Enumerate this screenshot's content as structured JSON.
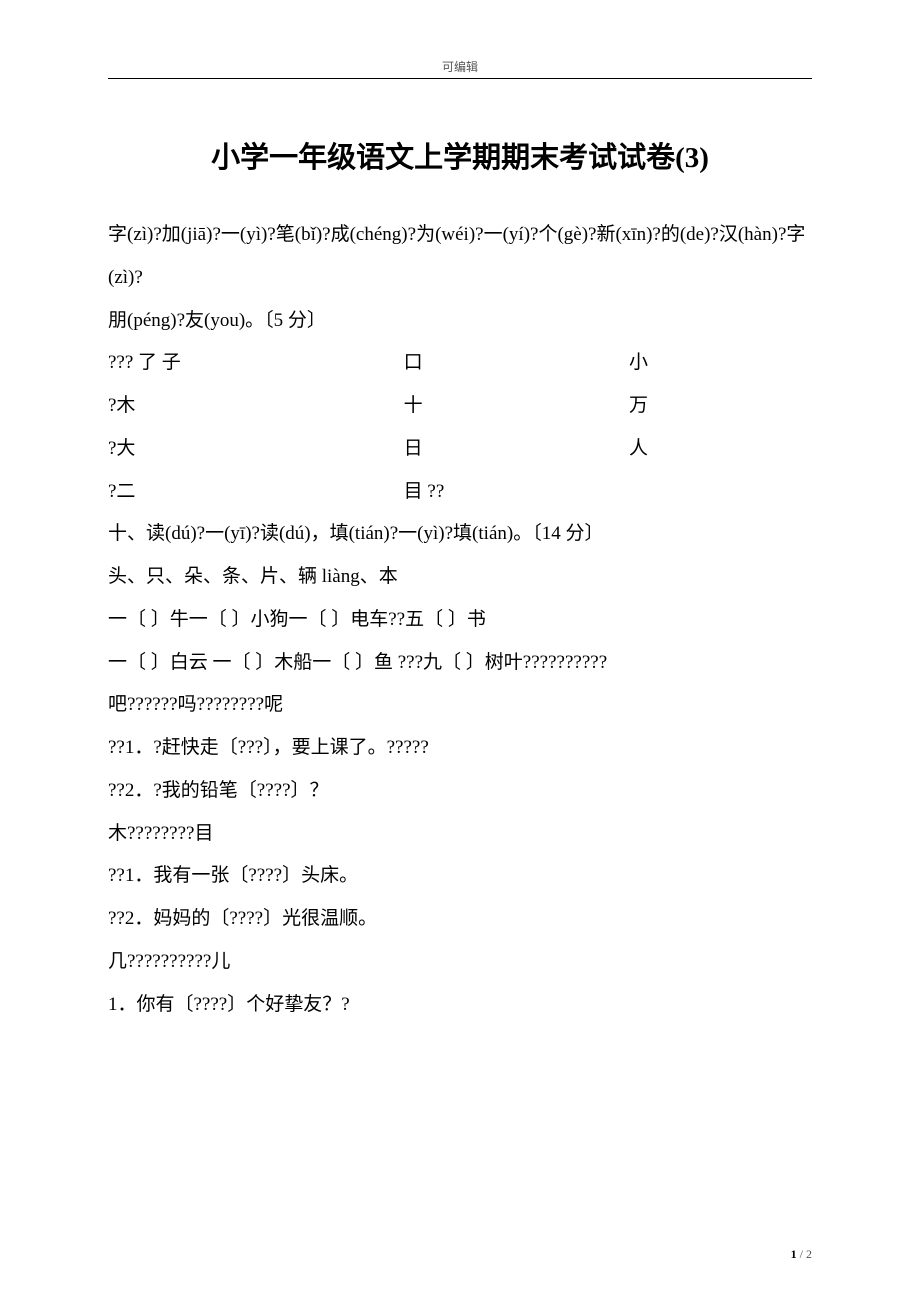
{
  "header": {
    "text": "可编辑"
  },
  "title": "小学一年级语文上学期期末考试试卷(3)",
  "intro": {
    "line1": "字(zì)?加(jiā)?一(yì)?笔(bǐ)?成(chéng)?为(wéi)?一(yí)?个(gè)?新(xīn)?的(de)?汉(hàn)?字(zì)?",
    "line2": "朋(péng)?友(you)。〔5 分〕"
  },
  "char_grid": {
    "row1": {
      "a": "???  了     子",
      "b": "口",
      "c": "小"
    },
    "row2": {
      "a": "       ?木",
      "b": "十",
      "c": "万"
    },
    "row3": {
      "a": "       ?大",
      "b": "日",
      "c": "人"
    },
    "row4": {
      "a": "       ?二",
      "b": "目        ??",
      "c": ""
    }
  },
  "section10": {
    "heading": "十、读(dú)?一(yī)?读(dú)，填(tián)?一(yì)?填(tián)。〔14 分〕",
    "classifiers": "头、只、朵、条、片、辆 liàng、本",
    "line_a": "一〔      〕牛一〔      〕小狗一〔      〕电车??五〔      〕书",
    "line_b": "一〔      〕白云   一〔      〕木船一〔      〕鱼   ???九〔      〕树叶??????????"
  },
  "particles": {
    "header": "吧??????吗????????呢",
    "q1": "??1．?赶快走〔???〕，要上课了。?????",
    "q2": "??2．?我的铅笔〔????〕？"
  },
  "mumu": {
    "header": "木????????目",
    "q1": "??1．我有一张〔????〕头床。",
    "q2": "??2．妈妈的〔????〕光很温顺。"
  },
  "jier": {
    "header": "几??????????儿",
    "q1": "1．你有〔????〕个好挚友？?"
  },
  "pager": {
    "current": "1",
    "total": "2",
    "sep": " / "
  }
}
